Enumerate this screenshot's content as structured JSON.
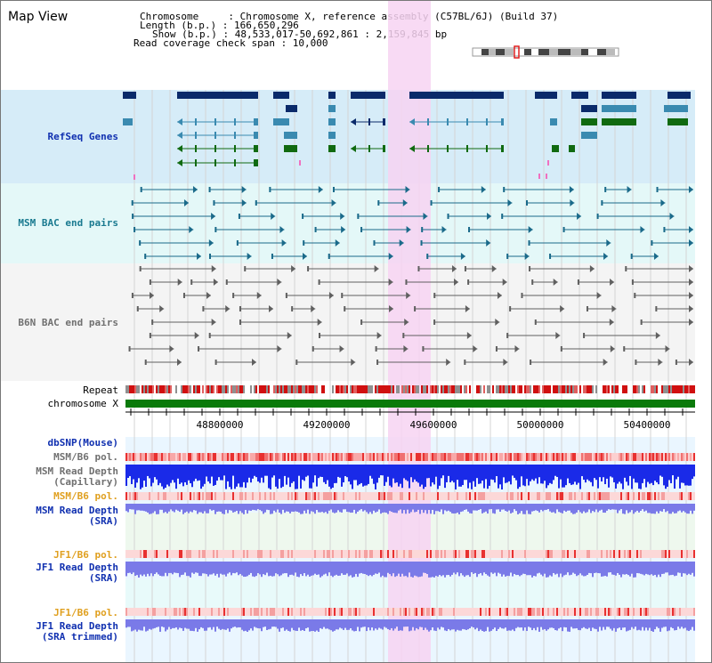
{
  "title": "Map View",
  "info": {
    "line1": "Chromosome     : Chromosome X, reference assembly (C57BL/6J) (Build 37)",
    "line2": "Length (b.p.) : 166,650,296",
    "line3": "Show (b.p.) : 48,533,017-50,692,861 : 2,159,845 bp",
    "line4": "Read coverage check span : 10,000"
  },
  "tracks": {
    "refseq": "RefSeq Genes",
    "msm_bac": "MSM BAC end pairs",
    "b6n_bac": "B6N BAC end pairs",
    "repeat": "Repeat",
    "chromosome": "chromosome X",
    "dbsnp": "dbSNP(Mouse)",
    "msm_b6_pol_1": "MSM/B6 pol.",
    "msm_depth_cap": "MSM Read Depth\n(Capillary)",
    "msm_b6_pol_2": "MSM/B6 pol.",
    "msm_depth_sra": "MSM Read Depth\n(SRA)",
    "jf1_b6_pol_1": "JF1/B6 pol.",
    "jf1_depth_sra": "JF1 Read Depth\n(SRA)",
    "jf1_b6_pol_2": "JF1/B6 pol.",
    "jf1_depth_trim": "JF1 Read Depth\n(SRA trimmed)"
  },
  "axis": {
    "ticks": [
      "48800000",
      "49200000",
      "49600000",
      "50000000",
      "50400000"
    ]
  },
  "colors": {
    "refseq_bg": "#d6ecf8",
    "msm_bac_bg": "#e4f8f8",
    "b6n_bac_bg": "#f4f4f4",
    "highlight": "#f7d4f2",
    "gene_dark": "#0a2a6a",
    "gene_teal": "#3a8ab0",
    "gene_green": "#106a10",
    "bac_teal": "#1a6a8a",
    "bac_gray": "#606060",
    "chrom_green": "#0a7a0a",
    "depth_blue": "#1a2ae8",
    "depth_light": "#7a7ae8"
  }
}
